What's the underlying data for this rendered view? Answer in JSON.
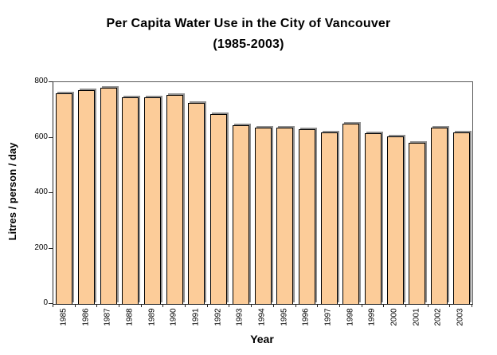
{
  "title": {
    "line1": "Per Capita Water Use in the City of Vancouver",
    "line2": "(1985-2003)"
  },
  "chart_data": {
    "type": "bar",
    "title": "Per Capita Water Use in the City of Vancouver (1985-2003)",
    "categories": [
      "1985",
      "1986",
      "1987",
      "1988",
      "1989",
      "1990",
      "1991",
      "1992",
      "1993",
      "1994",
      "1995",
      "1996",
      "1997",
      "1998",
      "1999",
      "2000",
      "2001",
      "2002",
      "2003"
    ],
    "values": [
      760,
      770,
      780,
      745,
      745,
      755,
      725,
      685,
      645,
      635,
      635,
      630,
      620,
      650,
      615,
      605,
      580,
      635,
      620
    ],
    "xlabel": "Year",
    "ylabel": "Litres / person / day",
    "ylim": [
      0,
      800
    ],
    "yticks": [
      0,
      200,
      400,
      600,
      800
    ],
    "grid": false,
    "legend": false,
    "bar_color": "#FCCC99",
    "bar_border_color": "#000000",
    "bar_shadow_color": "#8f8f8f",
    "frame_color": "#595959"
  }
}
